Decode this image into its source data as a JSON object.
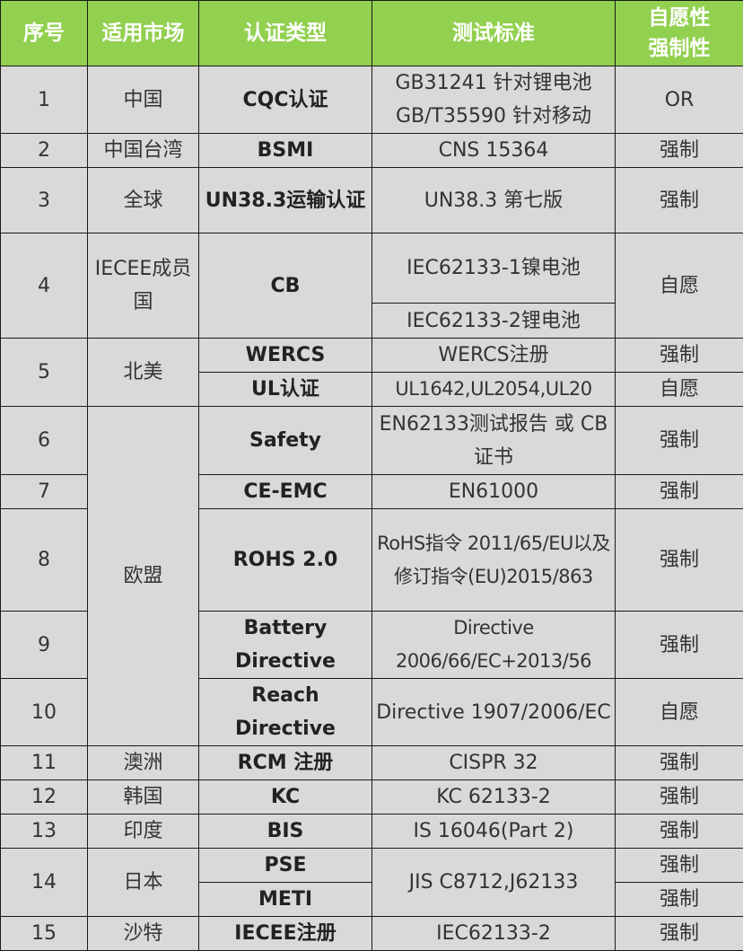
{
  "header": {
    "seq": "序号",
    "market": "适用市场",
    "type": "认证类型",
    "standard": "测试标准",
    "nature_1": "自愿性",
    "nature_2": "强制性"
  },
  "rows": [
    {
      "seq": "1",
      "market": "中国",
      "type": "CQC认证",
      "standards": [
        "GB31241 针对锂电池",
        "GB/T35590 针对移动"
      ],
      "nature": "OR"
    },
    {
      "seq": "2",
      "market": "中国台湾",
      "type": "BSMI",
      "standards": [
        "CNS 15364"
      ],
      "nature": "强制"
    },
    {
      "seq": "3",
      "market": "全球",
      "type": "UN38.3运输认证",
      "standards": [
        "UN38.3 第七版"
      ],
      "nature": "强制"
    },
    {
      "seq": "4",
      "market": "IECEE成员国",
      "type": "CB",
      "standards": [
        "IEC62133-1镍电池",
        "IEC62133-2锂电池"
      ],
      "nature": "自愿"
    },
    {
      "seq": "5",
      "market": "北美",
      "items": [
        {
          "type": "WERCS",
          "standard": "WERCS注册",
          "nature": "强制"
        },
        {
          "type": "UL认证",
          "standard": "UL1642,UL2054,UL20",
          "nature": "自愿"
        }
      ]
    },
    {
      "seq": "6",
      "market": "欧盟",
      "type": "Safety",
      "standards": [
        "EN62133测试报告 或 CB证书"
      ],
      "nature": "强制"
    },
    {
      "seq": "7",
      "type": "CE-EMC",
      "standards": [
        "EN61000"
      ],
      "nature": "强制"
    },
    {
      "seq": "8",
      "type": "ROHS 2.0",
      "standards": [
        "RoHS指令 2011/65/EU以及修订指令(EU)2015/863"
      ],
      "nature": "强制"
    },
    {
      "seq": "9",
      "type": "Battery Directive",
      "standards": [
        "Directive 2006/66/EC+2013/56"
      ],
      "nature": "强制"
    },
    {
      "seq": "10",
      "type": "Reach Directive",
      "standards": [
        "Directive 1907/2006/EC"
      ],
      "nature": "自愿"
    },
    {
      "seq": "11",
      "market": "澳洲",
      "type": "RCM 注册",
      "standards": [
        "CISPR 32"
      ],
      "nature": "强制"
    },
    {
      "seq": "12",
      "market": "韩国",
      "type": "KC",
      "standards": [
        "KC 62133-2"
      ],
      "nature": "强制"
    },
    {
      "seq": "13",
      "market": "印度",
      "type": "BIS",
      "standards": [
        "IS 16046(Part 2)"
      ],
      "nature": "强制"
    },
    {
      "seq": "14",
      "market": "日本",
      "standard": "JIS C8712,J62133",
      "items": [
        {
          "type": "PSE",
          "nature": "强制"
        },
        {
          "type": "METI",
          "nature": "强制"
        }
      ]
    },
    {
      "seq": "15",
      "market": "沙特",
      "type": "IECEE注册",
      "standards": [
        "IEC62133-2"
      ],
      "nature": "强制"
    }
  ],
  "colors": {
    "header_bg": "#92d050",
    "cell_bg": "#d9d9d9",
    "border": "#1a1a1a"
  }
}
